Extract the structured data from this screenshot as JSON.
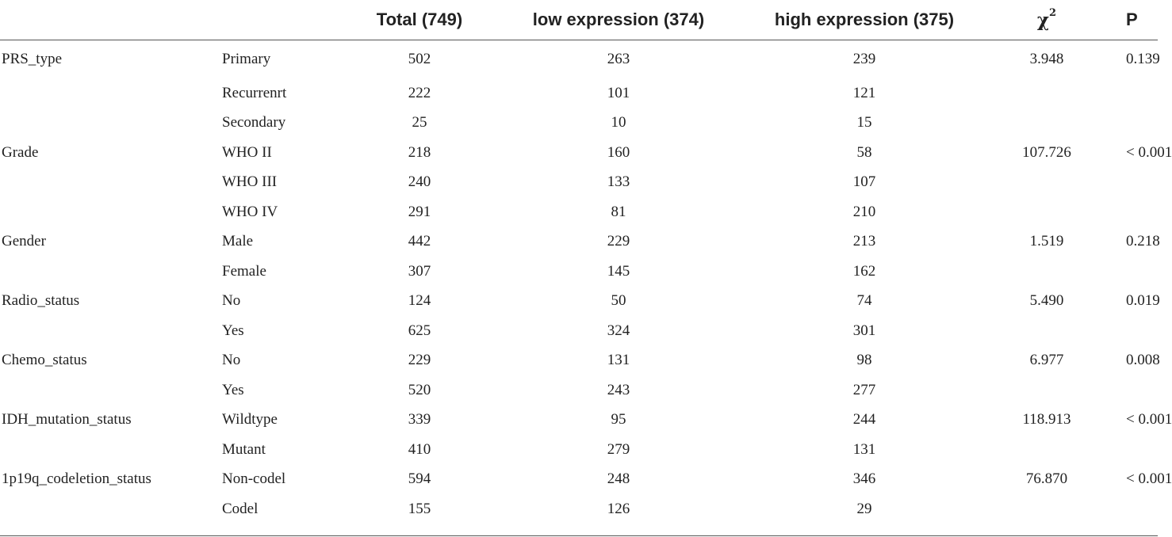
{
  "header": {
    "variable": "",
    "level": "",
    "total": "Total (749)",
    "low": "low expression (374)",
    "high": "high expression (375)",
    "chi_symbol": "χ",
    "chi_sup": "2",
    "p": "P"
  },
  "rows": [
    {
      "variable": "PRS_type",
      "level": "Primary",
      "total": "502",
      "low": "263",
      "high": "239",
      "chi2": "3.948",
      "p": "0.139"
    },
    {
      "variable": "",
      "level": "Recurrenrt",
      "total": "222",
      "low": "101",
      "high": "121",
      "chi2": "",
      "p": ""
    },
    {
      "variable": "",
      "level": "Secondary",
      "total": "25",
      "low": "10",
      "high": "15",
      "chi2": "",
      "p": ""
    },
    {
      "variable": "Grade",
      "level": "WHO II",
      "total": "218",
      "low": "160",
      "high": "58",
      "chi2": "107.726",
      "p": "< 0.001"
    },
    {
      "variable": "",
      "level": "WHO III",
      "total": "240",
      "low": "133",
      "high": "107",
      "chi2": "",
      "p": ""
    },
    {
      "variable": "",
      "level": "WHO IV",
      "total": "291",
      "low": "81",
      "high": "210",
      "chi2": "",
      "p": ""
    },
    {
      "variable": "Gender",
      "level": "Male",
      "total": "442",
      "low": "229",
      "high": "213",
      "chi2": "1.519",
      "p": "0.218"
    },
    {
      "variable": "",
      "level": "Female",
      "total": "307",
      "low": "145",
      "high": "162",
      "chi2": "",
      "p": ""
    },
    {
      "variable": "Radio_status",
      "level": "No",
      "total": "124",
      "low": "50",
      "high": "74",
      "chi2": "5.490",
      "p": "0.019"
    },
    {
      "variable": "",
      "level": "Yes",
      "total": "625",
      "low": "324",
      "high": "301",
      "chi2": "",
      "p": ""
    },
    {
      "variable": "Chemo_status",
      "level": "No",
      "total": "229",
      "low": "131",
      "high": "98",
      "chi2": "6.977",
      "p": "0.008"
    },
    {
      "variable": "",
      "level": "Yes",
      "total": "520",
      "low": "243",
      "high": "277",
      "chi2": "",
      "p": ""
    },
    {
      "variable": "IDH_mutation_status",
      "level": "Wildtype",
      "total": "339",
      "low": "95",
      "high": "244",
      "chi2": "118.913",
      "p": "< 0.001"
    },
    {
      "variable": "",
      "level": "Mutant",
      "total": "410",
      "low": "279",
      "high": "131",
      "chi2": "",
      "p": ""
    },
    {
      "variable": "1p19q_codeletion_status",
      "level": "Non-codel",
      "total": "594",
      "low": "248",
      "high": "346",
      "chi2": "76.870",
      "p": "< 0.001"
    },
    {
      "variable": "",
      "level": "Codel",
      "total": "155",
      "low": "126",
      "high": "29",
      "chi2": "",
      "p": ""
    }
  ]
}
